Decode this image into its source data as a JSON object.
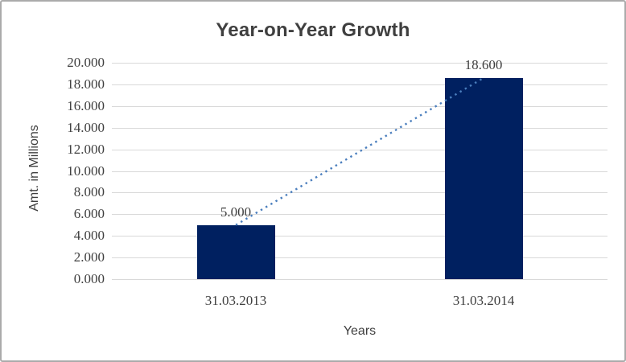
{
  "window": {
    "background_color": "#ffffff",
    "border_color": "#ababab"
  },
  "chart_data": {
    "type": "bar",
    "title": "Year-on-Year Growth",
    "xlabel": "Years",
    "ylabel": "Amt. in Millions",
    "categories": [
      "31.03.2013",
      "31.03.2014"
    ],
    "series": [
      {
        "name": "amount",
        "type": "bar",
        "values": [
          5.0,
          18.6
        ],
        "color": "#002060"
      },
      {
        "name": "trendline",
        "type": "dotted-line",
        "values": [
          5.0,
          18.6
        ],
        "color": "#4a7ebd"
      }
    ],
    "data_labels": [
      "5.000",
      "18.600"
    ],
    "ylim": [
      0,
      20
    ],
    "ytick_step": 2,
    "yticks": [
      "20.000",
      "18.000",
      "16.000",
      "14.000",
      "12.000",
      "10.000",
      "8.000",
      "6.000",
      "4.000",
      "2.000",
      "0.000"
    ],
    "grid": "horizontal",
    "gridline_color": "#d9d9d9",
    "text_color": "#3f3f3f",
    "legend": "none"
  }
}
